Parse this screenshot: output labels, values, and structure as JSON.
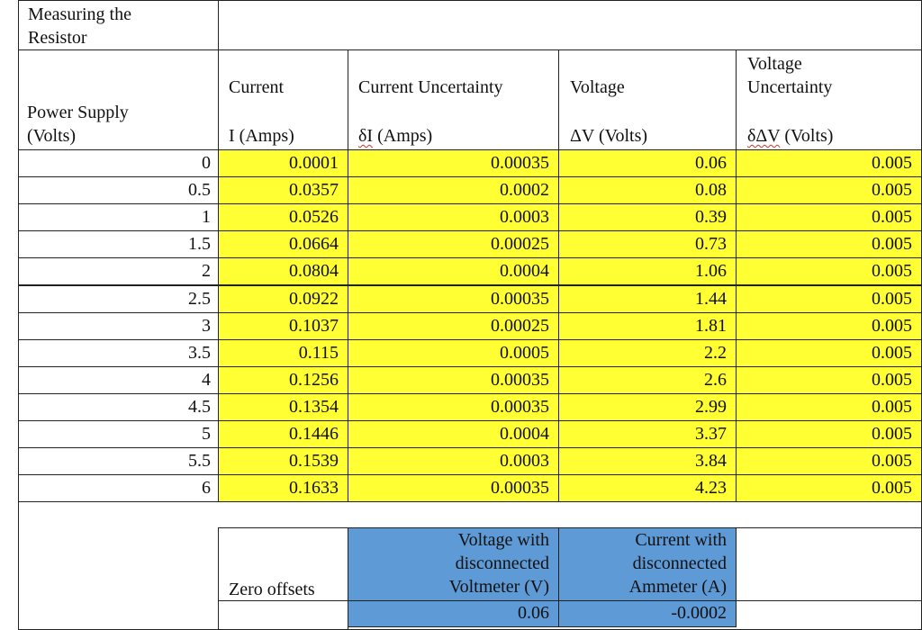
{
  "title_line1": "Measuring the",
  "title_line2": "Resistor",
  "headers": {
    "current": "Current",
    "current_uncertainty": "Current Uncertainty",
    "voltage": "Voltage",
    "voltage_uncertainty_line1": "Voltage",
    "voltage_uncertainty_line2": "Uncertainty",
    "power_supply_line1": "Power Supply",
    "power_supply_line2": "(Volts)",
    "current_unit": "I (Amps)",
    "current_unc_symbol": "δI",
    "current_unc_unit": " (Amps)",
    "voltage_unit": "ΔV (Volts)",
    "voltage_unc_symbol": "δΔV",
    "voltage_unc_unit": " (Volts)"
  },
  "rows": [
    {
      "supply": "0",
      "current": "0.0001",
      "current_unc": "0.00035",
      "voltage": "0.06",
      "voltage_unc": "0.005"
    },
    {
      "supply": "0.5",
      "current": "0.0357",
      "current_unc": "0.0002",
      "voltage": "0.08",
      "voltage_unc": "0.005"
    },
    {
      "supply": "1",
      "current": "0.0526",
      "current_unc": "0.0003",
      "voltage": "0.39",
      "voltage_unc": "0.005"
    },
    {
      "supply": "1.5",
      "current": "0.0664",
      "current_unc": "0.00025",
      "voltage": "0.73",
      "voltage_unc": "0.005"
    },
    {
      "supply": "2",
      "current": "0.0804",
      "current_unc": "0.0004",
      "voltage": "1.06",
      "voltage_unc": "0.005"
    },
    {
      "supply": "2.5",
      "current": "0.0922",
      "current_unc": "0.00035",
      "voltage": "1.44",
      "voltage_unc": "0.005"
    },
    {
      "supply": "3",
      "current": "0.1037",
      "current_unc": "0.00025",
      "voltage": "1.81",
      "voltage_unc": "0.005"
    },
    {
      "supply": "3.5",
      "current": "0.115",
      "current_unc": "0.0005",
      "voltage": "2.2",
      "voltage_unc": "0.005"
    },
    {
      "supply": "4",
      "current": "0.1256",
      "current_unc": "0.00035",
      "voltage": "2.6",
      "voltage_unc": "0.005"
    },
    {
      "supply": "4.5",
      "current": "0.1354",
      "current_unc": "0.00035",
      "voltage": "2.99",
      "voltage_unc": "0.005"
    },
    {
      "supply": "5",
      "current": "0.1446",
      "current_unc": "0.0004",
      "voltage": "3.37",
      "voltage_unc": "0.005"
    },
    {
      "supply": "5.5",
      "current": "0.1539",
      "current_unc": "0.0003",
      "voltage": "3.84",
      "voltage_unc": "0.005"
    },
    {
      "supply": "6",
      "current": "0.1633",
      "current_unc": "0.00035",
      "voltage": "4.23",
      "voltage_unc": "0.005"
    }
  ],
  "zero_offsets": {
    "label": "Zero offsets",
    "voltage_header_line1": "Voltage with",
    "voltage_header_line2": "disconnected",
    "voltage_header_line3": "Voltmeter (V)",
    "current_header_line1": "Current with",
    "current_header_line2": "disconnected",
    "current_header_line3": "Ammeter (A)",
    "voltage_value": "0.06",
    "current_value": "-0.0002"
  },
  "colors": {
    "highlight": "#ffff33",
    "offset_header": "#5e9ad6",
    "border": "#222222"
  }
}
